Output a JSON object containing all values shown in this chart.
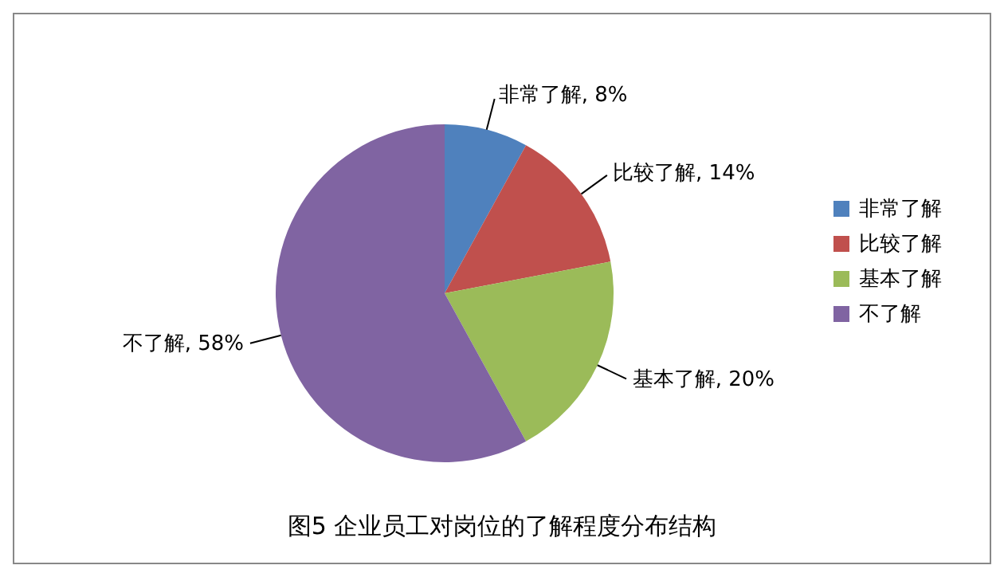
{
  "chart_data": {
    "type": "pie",
    "title": "图5  企业员工对岗位的了解程度分布结构",
    "categories": [
      "非常了解",
      "比较了解",
      "基本了解",
      "不了解"
    ],
    "values": [
      8,
      14,
      20,
      58
    ],
    "value_labels": [
      "非常了解, 8%",
      "比较了解, 14%",
      "基本了解, 20%",
      "不了解, 58%"
    ],
    "colors": [
      "#4f81bd",
      "#c0504d",
      "#9bbb59",
      "#8064a2"
    ],
    "legend": "right"
  }
}
